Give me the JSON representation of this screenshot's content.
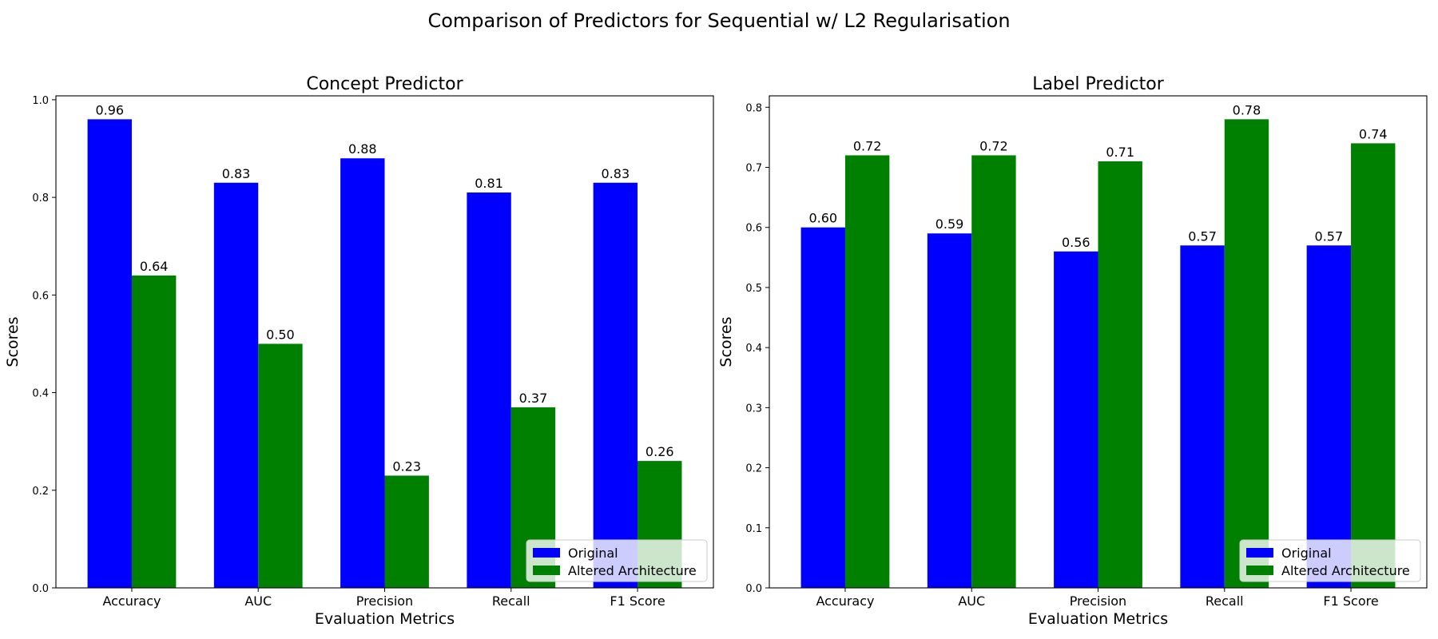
{
  "figure": {
    "suptitle": "Comparison of Predictors for Sequential w/ L2 Regularisation"
  },
  "colors": {
    "original": "#0000ff",
    "altered": "#008000"
  },
  "chart_data": [
    {
      "type": "bar",
      "title": "Concept Predictor",
      "xlabel": "Evaluation Metrics",
      "ylabel": "Scores",
      "categories": [
        "Accuracy",
        "AUC",
        "Precision",
        "Recall",
        "F1 Score"
      ],
      "series": [
        {
          "name": "Original",
          "values": [
            0.96,
            0.83,
            0.88,
            0.81,
            0.83
          ]
        },
        {
          "name": "Altered Architecture",
          "values": [
            0.64,
            0.5,
            0.23,
            0.37,
            0.26
          ]
        }
      ],
      "ylim": [
        0,
        1.008
      ],
      "yticks": [
        "0.0",
        "0.2",
        "0.4",
        "0.6",
        "0.8",
        "1.0"
      ],
      "legend": "lower-right",
      "grid": false
    },
    {
      "type": "bar",
      "title": "Label Predictor",
      "xlabel": "Evaluation Metrics",
      "ylabel": "Scores",
      "categories": [
        "Accuracy",
        "AUC",
        "Precision",
        "Recall",
        "F1 Score"
      ],
      "series": [
        {
          "name": "Original",
          "values": [
            0.6,
            0.59,
            0.56,
            0.57,
            0.57
          ]
        },
        {
          "name": "Altered Architecture",
          "values": [
            0.72,
            0.72,
            0.71,
            0.78,
            0.74
          ]
        }
      ],
      "ylim": [
        0,
        0.819
      ],
      "yticks": [
        "0.0",
        "0.1",
        "0.2",
        "0.3",
        "0.4",
        "0.5",
        "0.6",
        "0.7",
        "0.8"
      ],
      "legend": "lower-right",
      "grid": false
    }
  ]
}
